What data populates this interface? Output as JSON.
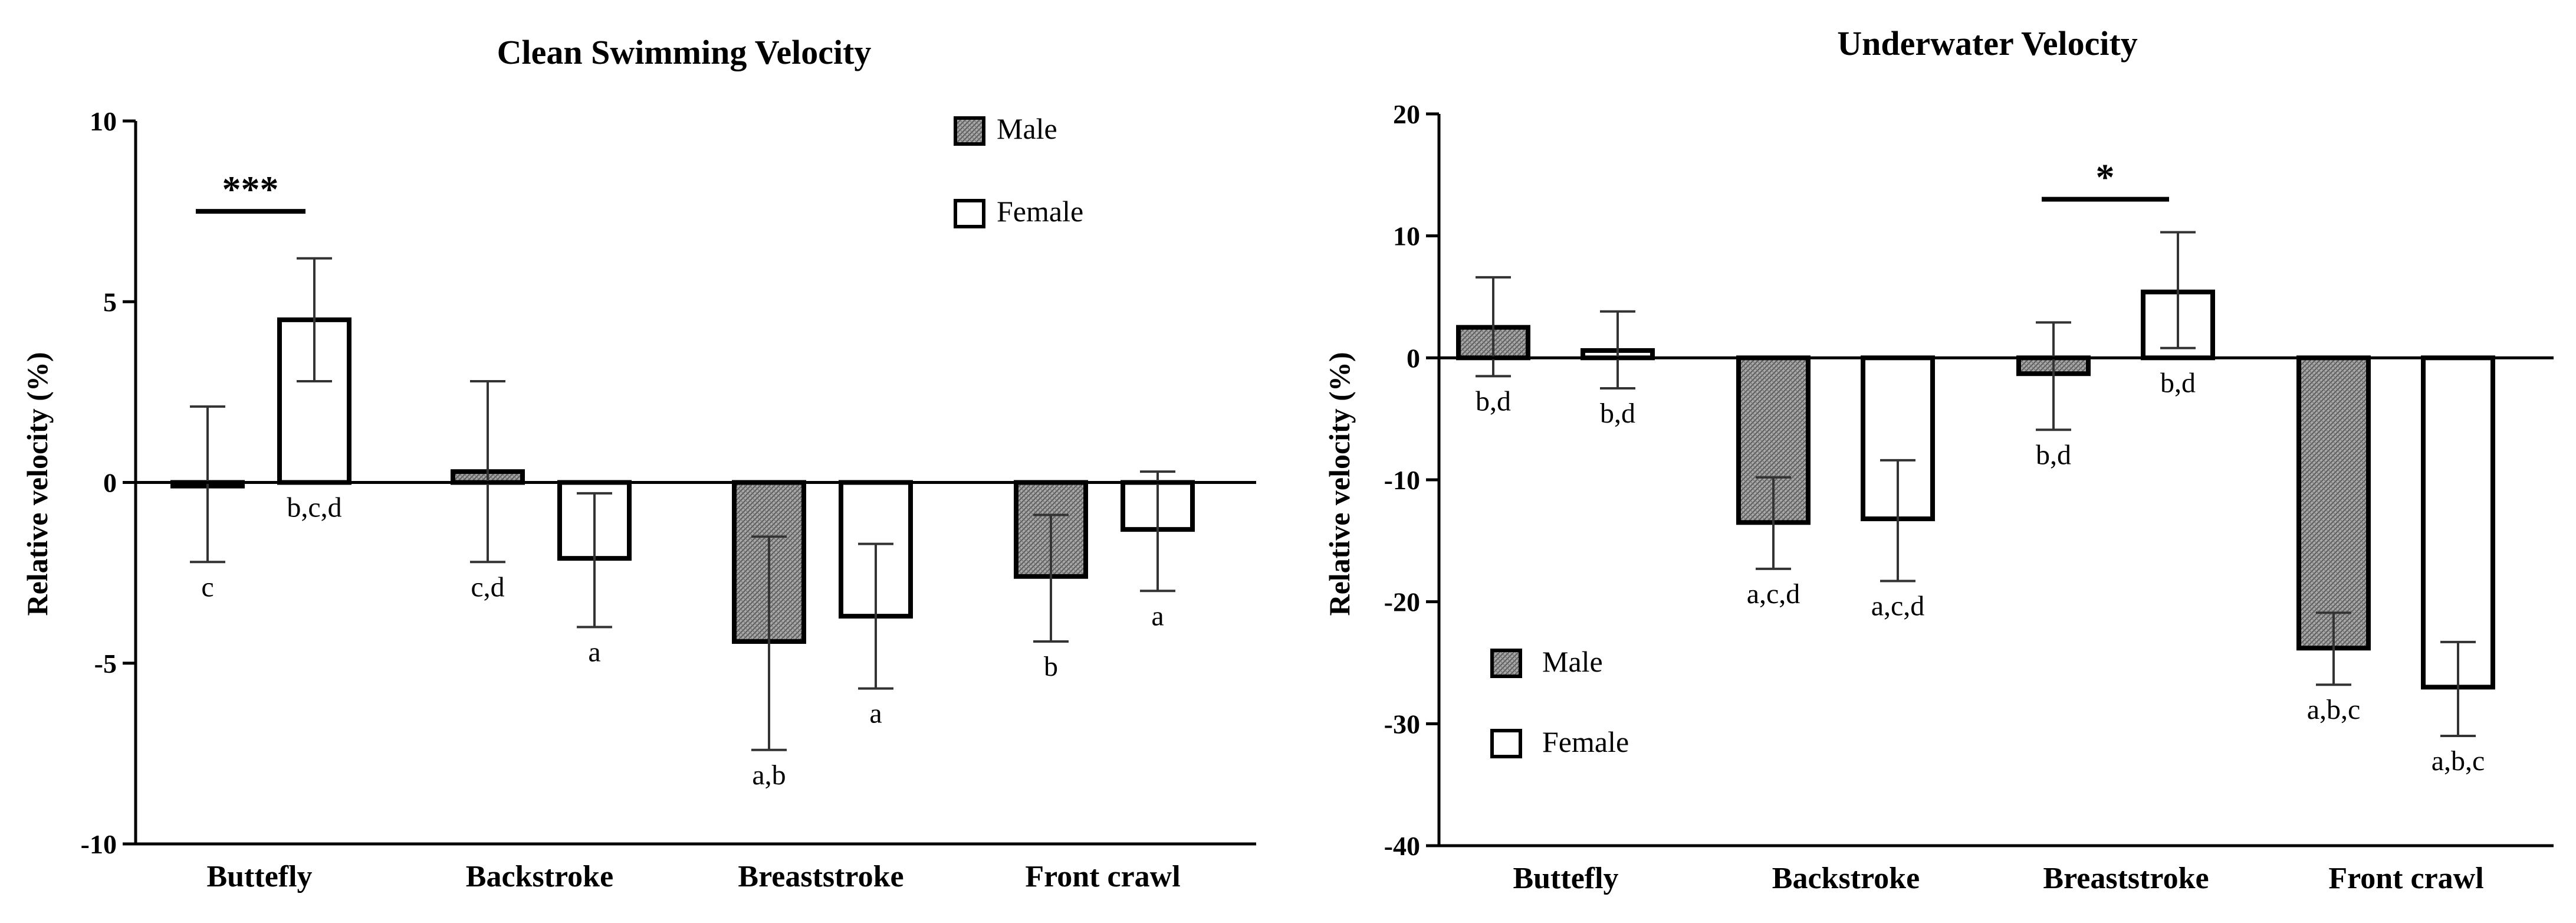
{
  "chart_data": [
    {
      "type": "bar",
      "title": "Clean Swimming Velocity",
      "xlabel": "",
      "ylabel": "Relative velocity (%)",
      "ylim": [
        -10,
        10
      ],
      "yticks": [
        10,
        5,
        0,
        -5,
        -10
      ],
      "categories": [
        "Buttefly",
        "Backstroke",
        "Breaststroke",
        "Front crawl"
      ],
      "legend_position": "top-right",
      "series": [
        {
          "name": "Male",
          "pattern": "hatched",
          "values": [
            -0.1,
            0.3,
            -4.4,
            -2.6
          ],
          "err_low": [
            -2.2,
            -2.2,
            -7.4,
            -4.4
          ],
          "err_high": [
            2.1,
            2.8,
            -1.5,
            -0.9
          ],
          "labels": [
            "c",
            "c,d",
            "a,b",
            "b"
          ]
        },
        {
          "name": "Female",
          "pattern": "open",
          "values": [
            4.5,
            -2.1,
            -3.7,
            -1.3
          ],
          "err_low": [
            2.8,
            -4.0,
            -5.7,
            -3.0
          ],
          "err_high": [
            6.2,
            -0.3,
            -1.7,
            0.3
          ],
          "labels": [
            "b,c,d",
            "a",
            "a",
            "a"
          ]
        }
      ],
      "significance": [
        {
          "category": "Buttefly",
          "label": "***",
          "y": 7.5
        }
      ]
    },
    {
      "type": "bar",
      "title": "Underwater Velocity",
      "xlabel": "",
      "ylabel": "Relative velocity (%)",
      "ylim": [
        -40,
        20
      ],
      "yticks": [
        20,
        10,
        0,
        -10,
        -20,
        -30,
        -40
      ],
      "categories": [
        "Buttefly",
        "Backstroke",
        "Breaststroke",
        "Front crawl"
      ],
      "legend_position": "bottom-left",
      "series": [
        {
          "name": "Male",
          "pattern": "hatched",
          "values": [
            2.5,
            -13.5,
            -1.3,
            -23.8
          ],
          "err_low": [
            -1.5,
            -17.3,
            -5.9,
            -26.8
          ],
          "err_high": [
            6.6,
            -9.8,
            2.9,
            -20.9
          ],
          "labels": [
            "b,d",
            "a,c,d",
            "b,d",
            "a,b,c"
          ]
        },
        {
          "name": "Female",
          "pattern": "open",
          "values": [
            0.6,
            -13.2,
            5.4,
            -27.0
          ],
          "err_low": [
            -2.5,
            -18.3,
            0.8,
            -31.0
          ],
          "err_high": [
            3.8,
            -8.4,
            10.3,
            -23.3
          ],
          "labels": [
            "b,d",
            "a,c,d",
            "b,d",
            "a,b,c"
          ]
        }
      ],
      "significance": [
        {
          "category": "Breaststroke",
          "label": "*",
          "y": 13
        }
      ]
    }
  ]
}
